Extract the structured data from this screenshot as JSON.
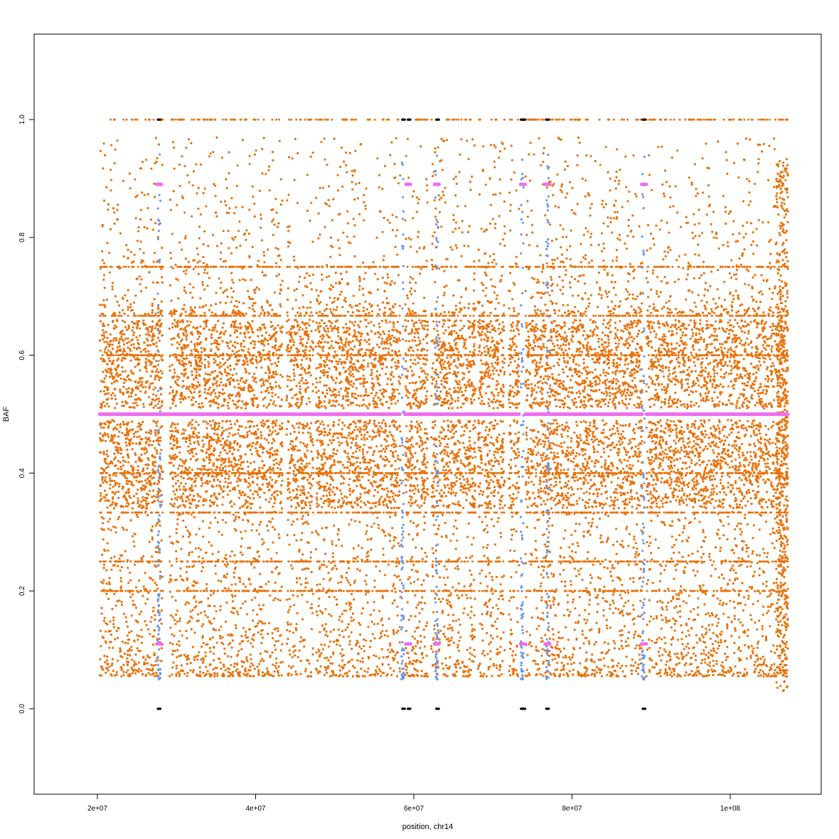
{
  "chart_data": {
    "type": "scatter",
    "title": "",
    "xlabel": "position, chr14",
    "ylabel": "BAF",
    "xlim": [
      12000000,
      111500000
    ],
    "ylim": [
      -0.145,
      1.145
    ],
    "x_ticks": [
      {
        "value": 20000000,
        "label": "2e+07"
      },
      {
        "value": 40000000,
        "label": "4e+07"
      },
      {
        "value": 60000000,
        "label": "6e+07"
      },
      {
        "value": 80000000,
        "label": "8e+07"
      },
      {
        "value": 100000000,
        "label": "1e+08"
      }
    ],
    "y_ticks": [
      {
        "value": 0.0,
        "label": "0.0"
      },
      {
        "value": 0.2,
        "label": "0.2"
      },
      {
        "value": 0.4,
        "label": "0.4"
      },
      {
        "value": 0.6,
        "label": "0.6"
      },
      {
        "value": 0.8,
        "label": "0.8"
      },
      {
        "value": 1.0,
        "label": "1.0"
      }
    ],
    "grid": false,
    "legend": "none",
    "x_range_of_data": [
      20300000,
      107300000
    ],
    "data_gaps": [
      [
        28300000,
        29100000
      ],
      [
        43400000,
        43900000
      ],
      [
        47300000,
        47600000
      ],
      [
        58300000,
        58900000
      ],
      [
        61800000,
        62200000
      ],
      [
        67800000,
        68100000
      ],
      [
        71500000,
        72000000
      ],
      [
        73300000,
        74100000
      ],
      [
        88900000,
        89400000
      ]
    ],
    "series": [
      {
        "color": "#e8720c",
        "description_values": {
          "dense_band_low": [
            0.34,
            0.49
          ],
          "dense_band_high": [
            0.51,
            0.66
          ],
          "sparse_range": [
            0.03,
            0.98
          ],
          "horizontal_lines": [
            1.0,
            0.75,
            0.667,
            0.6,
            0.4,
            0.333,
            0.25,
            0.2
          ]
        }
      },
      {
        "color": "#ee6fee",
        "values_at": 0.5,
        "segments": [
          [
            20300000,
            58300000
          ],
          [
            58900000,
            73300000
          ],
          [
            74100000,
            88900000
          ],
          [
            89400000,
            107300000
          ]
        ],
        "clusters": [
          {
            "x": 27800000,
            "y": [
              0.89,
              0.11
            ]
          },
          {
            "x": 59300000,
            "y": [
              0.89,
              0.11
            ]
          },
          {
            "x": 62900000,
            "y": [
              0.89,
              0.11
            ]
          },
          {
            "x": 73800000,
            "y": [
              0.89,
              0.11
            ]
          },
          {
            "x": 76900000,
            "y": [
              0.89,
              0.11
            ]
          },
          {
            "x": 89100000,
            "y": [
              0.89,
              0.11
            ]
          }
        ]
      },
      {
        "color": "#6a97e6",
        "columns_x": [
          27800000,
          58600000,
          62900000,
          73700000,
          76900000,
          89000000
        ]
      },
      {
        "color": "#000000",
        "points_at_y0_and_y1_x": [
          27800000,
          58700000,
          59400000,
          63000000,
          73700000,
          73900000,
          76900000,
          89100000
        ]
      }
    ]
  }
}
